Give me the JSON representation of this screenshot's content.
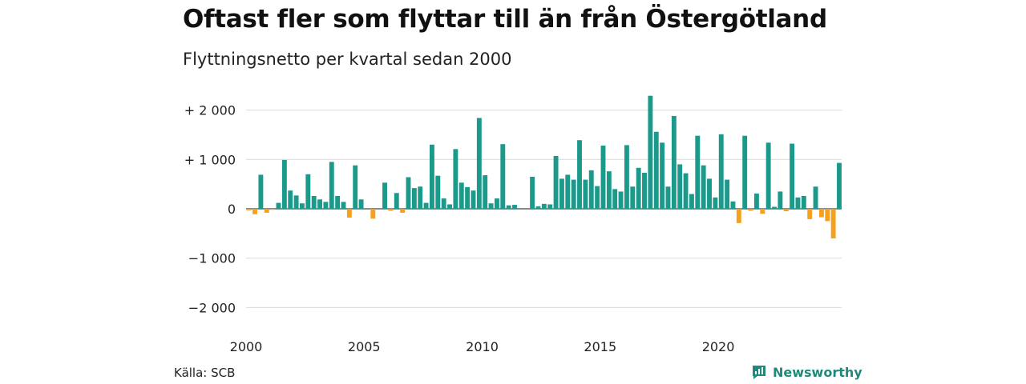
{
  "title": "Oftast fler som flyttar till än från Östergötland",
  "subtitle": "Flyttningsnetto per kvartal sedan 2000",
  "source": "Källa: SCB",
  "brand": "Newsworthy",
  "colors": {
    "positive": "#1b9a8b",
    "negative": "#f5a11d",
    "grid": "#d9d9d9",
    "brand": "#1f8a7a"
  },
  "chart_data": {
    "type": "bar",
    "x_start": "2000 Q1",
    "ylim": [
      -2000,
      2300
    ],
    "yticks": [
      2000,
      1000,
      0,
      -1000,
      -2000
    ],
    "ytick_labels": [
      "+ 2 000",
      "+ 1 000",
      "0",
      "−1 000",
      "−2 000"
    ],
    "xticks": [
      "2000",
      "2005",
      "2010",
      "2015",
      "2020"
    ],
    "values": [
      -30,
      -110,
      690,
      -80,
      -20,
      120,
      990,
      370,
      270,
      110,
      700,
      260,
      190,
      140,
      950,
      260,
      140,
      -180,
      880,
      190,
      0,
      -200,
      0,
      530,
      -40,
      320,
      -80,
      640,
      420,
      450,
      120,
      1300,
      670,
      210,
      90,
      1210,
      530,
      440,
      370,
      1840,
      680,
      110,
      210,
      1310,
      70,
      80,
      0,
      0,
      650,
      50,
      100,
      90,
      1070,
      610,
      690,
      590,
      1390,
      590,
      780,
      460,
      1280,
      760,
      400,
      350,
      1290,
      450,
      830,
      730,
      2290,
      1560,
      1340,
      450,
      1880,
      900,
      720,
      300,
      1480,
      880,
      610,
      230,
      1510,
      590,
      150,
      -290,
      1480,
      -40,
      310,
      -100,
      1340,
      40,
      350,
      -50,
      1320,
      230,
      260,
      -210,
      450,
      -170,
      -250,
      -600,
      930
    ]
  }
}
